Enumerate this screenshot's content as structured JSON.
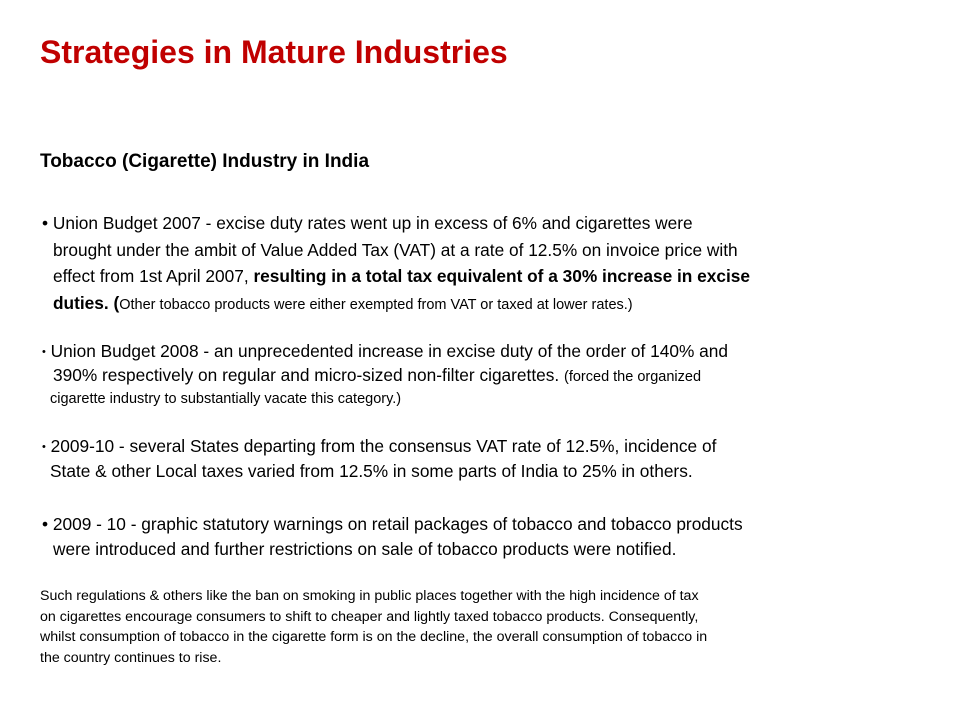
{
  "slide": {
    "title": "Strategies in Mature Industries",
    "subtitle": "Tobacco (Cigarette) Industry in India",
    "bullet_glyph": "•",
    "bullets": [
      {
        "lines": [
          " Union Budget 2007 - excise duty rates went up in excess of 6% and cigarettes were",
          "brought under the ambit of Value Added Tax (VAT) at a rate of 12.5% on invoice price with",
          "effect from 1st April 2007, ",
          "resulting in a total tax equivalent of a 30% increase in excise",
          "duties. (",
          "Other tobacco products were either exempted from VAT or taxed at lower rates.)"
        ]
      },
      {
        "lines": [
          " Union Budget 2008 - an unprecedented increase in excise duty of the order of 140% and",
          "390% respectively on regular and micro-sized non-filter cigarettes. ",
          "(forced the organized",
          "cigarette industry to substantially vacate this category.)"
        ]
      },
      {
        "lines": [
          " 2009-10  -  several States departing from the consensus VAT rate of 12.5%, incidence of",
          "State & other Local taxes varied from 12.5% in some parts of India to 25% in others."
        ]
      },
      {
        "lines": [
          " 2009 - 10 - graphic statutory warnings on retail packages of tobacco and tobacco products",
          "were introduced and further restrictions on sale of tobacco products were notified."
        ]
      }
    ],
    "summary_lines": [
      "Such regulations & others like the ban on smoking in public places together with the high incidence of tax",
      "on cigarettes encourage consumers to shift to cheaper and lightly taxed tobacco products. Consequently,",
      "whilst consumption of tobacco in the cigarette form is on the decline, the overall consumption of tobacco in",
      "the country continues to rise."
    ]
  },
  "colors": {
    "title": "#c00000",
    "text": "#000000",
    "background": "#ffffff"
  }
}
